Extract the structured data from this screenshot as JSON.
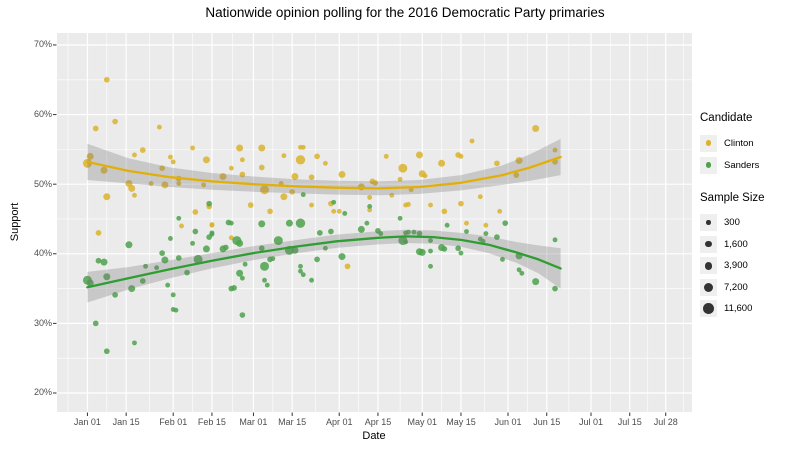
{
  "title": "Nationwide opinion polling for the 2016 Democratic Party primaries",
  "axes": {
    "x": {
      "label": "Date",
      "ticks": [
        {
          "label": "Jan 01",
          "day": 0
        },
        {
          "label": "Jan 15",
          "day": 14
        },
        {
          "label": "Feb 01",
          "day": 31
        },
        {
          "label": "Feb 15",
          "day": 45
        },
        {
          "label": "Mar 01",
          "day": 60
        },
        {
          "label": "Mar 15",
          "day": 74
        },
        {
          "label": "Apr 01",
          "day": 91
        },
        {
          "label": "Apr 15",
          "day": 105
        },
        {
          "label": "May 01",
          "day": 121
        },
        {
          "label": "May 15",
          "day": 135
        },
        {
          "label": "Jun 01",
          "day": 152
        },
        {
          "label": "Jun 15",
          "day": 166
        },
        {
          "label": "Jul 01",
          "day": 182
        },
        {
          "label": "Jul 15",
          "day": 196
        },
        {
          "label": "Jul 28",
          "day": 209
        }
      ]
    },
    "y": {
      "label": "Support",
      "ticks": [
        {
          "label": "70%",
          "value": 70
        },
        {
          "label": "60%",
          "value": 60
        },
        {
          "label": "50%",
          "value": 50
        },
        {
          "label": "40%",
          "value": 40
        },
        {
          "label": "30%",
          "value": 30
        },
        {
          "label": "20%",
          "value": 20
        }
      ],
      "minor": [
        65,
        55,
        45,
        35,
        25
      ]
    }
  },
  "legend": {
    "candidate_title": "Candidate",
    "candidates": [
      {
        "name": "Clinton",
        "color": "#DBB32B"
      },
      {
        "name": "Sanders",
        "color": "#4EA24E"
      }
    ],
    "size_title": "Sample Size",
    "sizes": [
      {
        "label": "300",
        "n": 300
      },
      {
        "label": "1,600",
        "n": 1600
      },
      {
        "label": "3,900",
        "n": 3900
      },
      {
        "label": "7,200",
        "n": 7200
      },
      {
        "label": "11,600",
        "n": 11600
      }
    ]
  },
  "colors": {
    "panel_bg": "#EBEBEB",
    "grid": "#FFFFFF",
    "clinton_point": "#DBB32B",
    "sanders_point": "#4EA24E",
    "clinton_line": "#E2AF08",
    "sanders_line": "#2E9D32",
    "band": "#787878",
    "band_opacity": 0.3,
    "tick_text": "#4D4D4D",
    "tick_mark": "#333333",
    "size_dot": "#333333"
  },
  "chart_data": {
    "type": "scatter",
    "x_domain_days": [
      -11,
      218.5
    ],
    "y_domain": [
      17.27,
      71.72
    ],
    "grid": true,
    "legend_position": "right",
    "polls_format": [
      "date",
      "clinton_pct",
      "sanders_pct",
      "sample_size"
    ],
    "polls": [
      [
        "2016-01-01",
        53.0,
        36.2,
        6500
      ],
      [
        "2016-01-02",
        54.0,
        35.8,
        2700
      ],
      [
        "2016-01-04",
        58.0,
        30.0,
        1100
      ],
      [
        "2016-01-05",
        43.0,
        39.0,
        1100
      ],
      [
        "2016-01-07",
        52.0,
        38.8,
        2700
      ],
      [
        "2016-01-08",
        65.0,
        26.0,
        1100
      ],
      [
        "2016-01-08",
        48.2,
        36.7,
        2700
      ],
      [
        "2016-01-11",
        59.0,
        34.1,
        1100
      ],
      [
        "2016-01-16",
        50.1,
        41.3,
        2700
      ],
      [
        "2016-01-17",
        49.4,
        35.0,
        2700
      ],
      [
        "2016-01-18",
        48.4,
        27.2,
        450
      ],
      [
        "2016-01-18",
        54.2,
        null,
        450
      ],
      [
        "2016-01-21",
        54.9,
        36.1,
        1100
      ],
      [
        "2016-01-22",
        null,
        38.2,
        450
      ],
      [
        "2016-01-24",
        50.1,
        null,
        450
      ],
      [
        "2016-01-26",
        null,
        38.0,
        450
      ],
      [
        "2016-01-27",
        58.2,
        null,
        450
      ],
      [
        "2016-01-28",
        52.3,
        40.1,
        1100
      ],
      [
        "2016-01-29",
        49.9,
        39.1,
        2700
      ],
      [
        "2016-01-30",
        null,
        35.5,
        450
      ],
      [
        "2016-01-31",
        53.9,
        42.2,
        450
      ],
      [
        "2016-02-01",
        53.2,
        34.1,
        450
      ],
      [
        "2016-02-01",
        null,
        32.0,
        450
      ],
      [
        "2016-02-02",
        null,
        31.9,
        450
      ],
      [
        "2016-02-03",
        50.8,
        39.4,
        1100
      ],
      [
        "2016-02-03",
        50.1,
        45.1,
        450
      ],
      [
        "2016-02-04",
        44.0,
        null,
        450
      ],
      [
        "2016-02-06",
        null,
        37.3,
        1100
      ],
      [
        "2016-02-08",
        55.2,
        null,
        450
      ],
      [
        "2016-02-08",
        null,
        41.5,
        450
      ],
      [
        "2016-02-09",
        46.0,
        43.2,
        1100
      ],
      [
        "2016-02-10",
        null,
        39.2,
        6500
      ],
      [
        "2016-02-12",
        49.9,
        null,
        450
      ],
      [
        "2016-02-13",
        53.5,
        40.7,
        2700
      ],
      [
        "2016-02-14",
        null,
        42.4,
        1100
      ],
      [
        "2016-02-14",
        46.8,
        47.2,
        1100
      ],
      [
        "2016-02-15",
        44.1,
        42.8,
        450
      ],
      [
        "2016-02-15",
        44.2,
        43.0,
        450
      ],
      [
        "2016-02-19",
        51.1,
        40.7,
        2700
      ],
      [
        "2016-02-20",
        null,
        40.9,
        1100
      ],
      [
        "2016-02-21",
        null,
        44.5,
        1100
      ],
      [
        "2016-02-22",
        52.3,
        44.4,
        450
      ],
      [
        "2016-02-22",
        42.3,
        null,
        450
      ],
      [
        "2016-02-22",
        null,
        35.0,
        1100
      ],
      [
        "2016-02-23",
        null,
        35.1,
        1100
      ],
      [
        "2016-02-24",
        null,
        41.9,
        6500
      ],
      [
        "2016-02-25",
        null,
        41.5,
        2700
      ],
      [
        "2016-02-25",
        55.2,
        37.2,
        2700
      ],
      [
        "2016-02-26",
        53.5,
        36.5,
        450
      ],
      [
        "2016-02-26",
        51.4,
        31.2,
        1100
      ],
      [
        "2016-02-27",
        null,
        38.5,
        450
      ],
      [
        "2016-02-29",
        47.0,
        null,
        1100
      ],
      [
        "2016-03-04",
        55.2,
        44.3,
        2700
      ],
      [
        "2016-03-04",
        52.4,
        40.8,
        1100
      ],
      [
        "2016-03-05",
        49.2,
        38.2,
        6500
      ],
      [
        "2016-03-05",
        null,
        36.2,
        450
      ],
      [
        "2016-03-06",
        null,
        35.5,
        450
      ],
      [
        "2016-03-07",
        46.1,
        39.2,
        1100
      ],
      [
        "2016-03-08",
        null,
        39.3,
        450
      ],
      [
        "2016-03-10",
        null,
        41.9,
        6500
      ],
      [
        "2016-03-11",
        50.1,
        null,
        450
      ],
      [
        "2016-03-12",
        54.1,
        null,
        450
      ],
      [
        "2016-03-12",
        48.2,
        null,
        2700
      ],
      [
        "2016-03-14",
        null,
        44.4,
        2700
      ],
      [
        "2016-03-14",
        null,
        40.5,
        6500
      ],
      [
        "2016-03-15",
        48.9,
        null,
        1100
      ],
      [
        "2016-03-16",
        51.1,
        40.5,
        2700
      ],
      [
        "2016-03-18",
        53.5,
        44.4,
        7500
      ],
      [
        "2016-03-18",
        55.3,
        null,
        450
      ],
      [
        "2016-03-18",
        null,
        38.2,
        450
      ],
      [
        "2016-03-18",
        null,
        37.5,
        450
      ],
      [
        "2016-03-19",
        55.3,
        null,
        450
      ],
      [
        "2016-03-19",
        null,
        48.5,
        450
      ],
      [
        "2016-03-19",
        null,
        37.0,
        450
      ],
      [
        "2016-03-22",
        51.0,
        null,
        1100
      ],
      [
        "2016-03-22",
        47.0,
        36.2,
        450
      ],
      [
        "2016-03-24",
        54.0,
        39.2,
        1100
      ],
      [
        "2016-03-25",
        null,
        43.0,
        1100
      ],
      [
        "2016-03-27",
        53.0,
        40.8,
        450
      ],
      [
        "2016-03-29",
        47.2,
        43.2,
        1100
      ],
      [
        "2016-03-30",
        46.1,
        47.4,
        450
      ],
      [
        "2016-04-01",
        46.1,
        null,
        450
      ],
      [
        "2016-04-02",
        51.4,
        39.6,
        2700
      ],
      [
        "2016-04-03",
        null,
        45.8,
        450
      ],
      [
        "2016-04-04",
        38.2,
        null,
        1100
      ],
      [
        "2016-04-09",
        49.6,
        43.5,
        2700
      ],
      [
        "2016-04-11",
        null,
        44.4,
        450
      ],
      [
        "2016-04-12",
        46.3,
        null,
        450
      ],
      [
        "2016-04-12",
        48.1,
        46.8,
        450
      ],
      [
        "2016-04-13",
        50.4,
        null,
        1100
      ],
      [
        "2016-04-14",
        50.2,
        null,
        1100
      ],
      [
        "2016-04-15",
        null,
        43.3,
        1100
      ],
      [
        "2016-04-16",
        null,
        42.9,
        450
      ],
      [
        "2016-04-18",
        54.0,
        null,
        450
      ],
      [
        "2016-04-20",
        48.4,
        null,
        450
      ],
      [
        "2016-04-23",
        50.7,
        45.1,
        450
      ],
      [
        "2016-04-24",
        52.3,
        41.9,
        6500
      ],
      [
        "2016-04-25",
        null,
        41.7,
        450
      ],
      [
        "2016-04-25",
        47.0,
        43.0,
        450
      ],
      [
        "2016-04-26",
        47.1,
        43.1,
        450
      ],
      [
        "2016-04-27",
        49.2,
        null,
        450
      ],
      [
        "2016-04-28",
        null,
        43.1,
        450
      ],
      [
        "2016-04-30",
        54.2,
        40.3,
        2700
      ],
      [
        "2016-04-30",
        null,
        42.9,
        1100
      ],
      [
        "2016-05-01",
        51.5,
        40.2,
        2700
      ],
      [
        "2016-05-02",
        51.2,
        null,
        450
      ],
      [
        "2016-05-04",
        47.0,
        41.9,
        450
      ],
      [
        "2016-05-04",
        null,
        40.4,
        450
      ],
      [
        "2016-05-04",
        null,
        38.2,
        450
      ],
      [
        "2016-05-08",
        53.0,
        40.9,
        2700
      ],
      [
        "2016-05-09",
        46.1,
        40.7,
        1100
      ],
      [
        "2016-05-10",
        null,
        44.1,
        450
      ],
      [
        "2016-05-14",
        54.2,
        40.8,
        1100
      ],
      [
        "2016-05-15",
        54.0,
        40.1,
        450
      ],
      [
        "2016-05-15",
        47.2,
        null,
        1100
      ],
      [
        "2016-05-17",
        44.4,
        43.2,
        450
      ],
      [
        "2016-05-19",
        56.2,
        null,
        450
      ],
      [
        "2016-05-22",
        48.2,
        42.1,
        450
      ],
      [
        "2016-05-23",
        null,
        41.8,
        450
      ],
      [
        "2016-05-24",
        44.1,
        42.9,
        450
      ],
      [
        "2016-05-28",
        53.0,
        42.4,
        1100
      ],
      [
        "2016-05-29",
        46.1,
        null,
        450
      ],
      [
        "2016-05-30",
        null,
        39.2,
        450
      ],
      [
        "2016-05-31",
        null,
        44.4,
        1100
      ],
      [
        "2016-06-04",
        51.3,
        null,
        1100
      ],
      [
        "2016-06-05",
        53.4,
        39.7,
        2700
      ],
      [
        "2016-06-05",
        null,
        37.7,
        450
      ],
      [
        "2016-06-06",
        null,
        37.2,
        450
      ],
      [
        "2016-06-11",
        58.0,
        36.0,
        2700
      ],
      [
        "2016-06-18",
        54.9,
        42.0,
        450
      ],
      [
        "2016-06-18",
        53.2,
        35.0,
        1100
      ]
    ],
    "trend_format": [
      "day_offset",
      "value_pct",
      "ci_halfwidth_pct"
    ],
    "trend_clinton": [
      [
        0,
        53.2,
        2.6
      ],
      [
        15,
        51.9,
        1.8
      ],
      [
        30,
        51.0,
        1.4
      ],
      [
        45,
        50.4,
        1.2
      ],
      [
        60,
        50.0,
        1.1
      ],
      [
        75,
        49.7,
        1.0
      ],
      [
        90,
        49.5,
        1.0
      ],
      [
        105,
        49.4,
        1.0
      ],
      [
        120,
        49.6,
        1.0
      ],
      [
        135,
        50.2,
        1.1
      ],
      [
        150,
        51.3,
        1.4
      ],
      [
        160,
        52.4,
        1.9
      ],
      [
        171,
        53.9,
        2.6
      ]
    ],
    "trend_sanders": [
      [
        0,
        35.2,
        2.2
      ],
      [
        15,
        36.5,
        1.6
      ],
      [
        30,
        37.8,
        1.3
      ],
      [
        45,
        39.0,
        1.1
      ],
      [
        60,
        40.1,
        1.0
      ],
      [
        75,
        41.0,
        0.95
      ],
      [
        90,
        41.8,
        0.95
      ],
      [
        105,
        42.3,
        0.95
      ],
      [
        115,
        42.5,
        0.95
      ],
      [
        125,
        42.4,
        0.95
      ],
      [
        135,
        42.0,
        1.0
      ],
      [
        145,
        41.3,
        1.2
      ],
      [
        155,
        40.2,
        1.5
      ],
      [
        163,
        39.2,
        2.0
      ],
      [
        171,
        37.9,
        2.9
      ]
    ]
  }
}
